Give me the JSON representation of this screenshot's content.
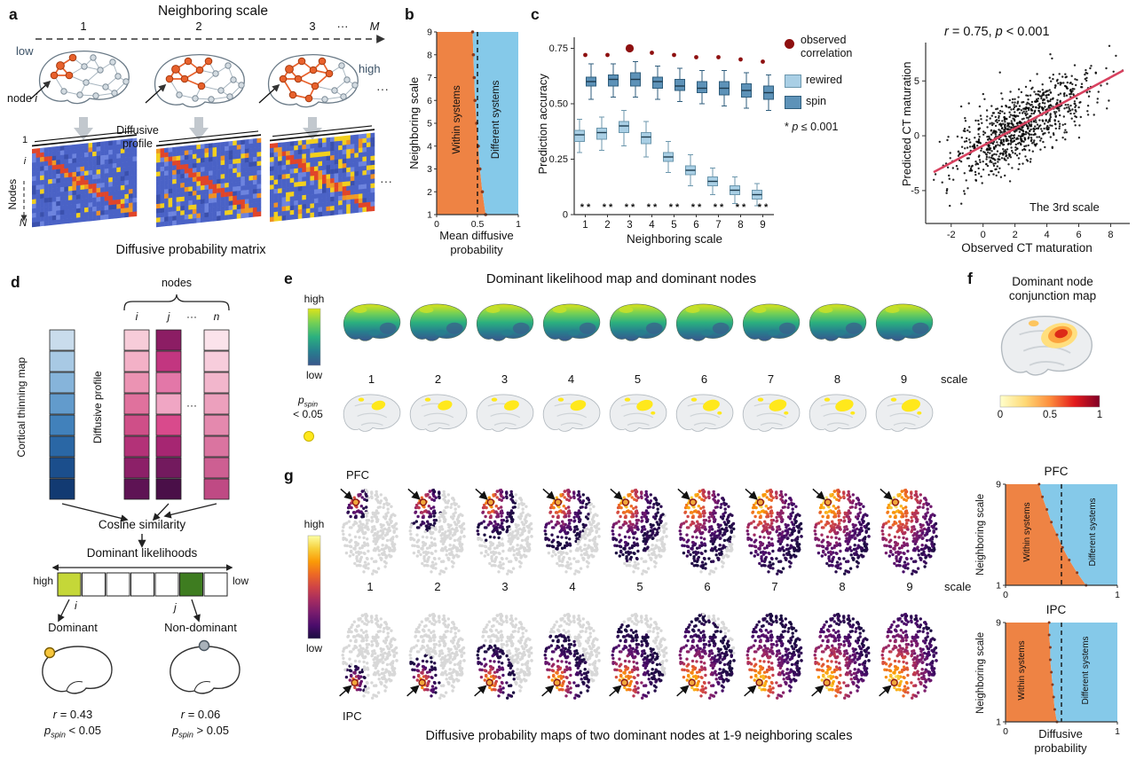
{
  "panels": {
    "a": {
      "label": "a",
      "title": "Neighboring scale",
      "scale_ticks": [
        "1",
        "2",
        "3",
        "···",
        "M"
      ],
      "low": "low",
      "high": "high",
      "node_i": {
        "pre": "node ",
        "it": "i"
      },
      "diffusive_profile": "Diffusive profile",
      "nodes_axis": "Nodes",
      "row_top": "1",
      "row_i": "i",
      "row_bottom": "N",
      "caption": "Diffusive probability matrix",
      "ellipsis_mid": "···",
      "ellipsis_right": "···"
    },
    "b": {
      "label": "b"
    },
    "c": {
      "label": "c"
    },
    "d": {
      "label": "d",
      "nodes_brace": "nodes",
      "col_i": "i",
      "col_j": "j",
      "col_dots": "···",
      "col_n": "n",
      "mid_dots": "···",
      "cortical_label": "Cortical thinning map",
      "diffusive_label": "Diffusive profile",
      "cosine": "Cosine similarity",
      "dominant_likelihoods": "Dominant likelihoods",
      "high": "high",
      "low": "low",
      "arrow_i": "i",
      "arrow_j": "j",
      "dominant": "Dominant",
      "non_dominant": "Non-dominant",
      "stat1_r": {
        "r": "r",
        "rest": " = 0.43"
      },
      "stat1_p": {
        "p": "p",
        "sub": "spin",
        "rest": " < 0.05"
      },
      "stat2_r": {
        "r": "r",
        "rest": " = 0.06"
      },
      "stat2_p": {
        "p": "p",
        "sub": "spin",
        "rest": " > 0.05"
      },
      "thinning_colors": [
        "#c9dcec",
        "#a8c9e4",
        "#86b4da",
        "#629bcc",
        "#4181bb",
        "#2a67a5",
        "#1b4e8c",
        "#123a72"
      ],
      "profile_i_colors": [
        "#f7ccd9",
        "#f3b1c7",
        "#eb93b3",
        "#e0719d",
        "#cf4f88",
        "#b33278",
        "#8c2068",
        "#5e1354"
      ],
      "profile_j_colors": [
        "#8c1d64",
        "#c23680",
        "#e377a8",
        "#f0a6c4",
        "#d94a8c",
        "#a62672",
        "#731a5e",
        "#4a0f48"
      ],
      "profile_n_colors": [
        "#fbe3eb",
        "#f7cddc",
        "#f2b6cc",
        "#eca0bd",
        "#e489ae",
        "#da74a0",
        "#cd5f92",
        "#bf4a84"
      ],
      "likelihood_cells": [
        "#c5d738",
        "#ffffff",
        "#ffffff",
        "#ffffff",
        "#ffffff",
        "#3e7c20",
        "#ffffff"
      ]
    },
    "e": {
      "label": "e",
      "title": "Dominant likelihood map and dominant nodes",
      "scales": [
        "1",
        "2",
        "3",
        "4",
        "5",
        "6",
        "7",
        "8",
        "9"
      ],
      "scale_word": "scale",
      "p_spin": {
        "p": "p",
        "sub": "spin",
        "rest": "< 0.05"
      }
    },
    "f": {
      "label": "f",
      "title": "Dominant node conjunction map"
    },
    "g": {
      "label": "g",
      "pfc": "PFC",
      "ipc": "IPC",
      "scales": [
        "1",
        "2",
        "3",
        "4",
        "5",
        "6",
        "7",
        "8",
        "9"
      ],
      "scale_word": "scale",
      "caption": "Diffusive probability maps of two dominant nodes at 1-9 neighboring scales"
    }
  },
  "colorbars": {
    "likelihood": {
      "high": "high",
      "low": "low",
      "stops": [
        "#dce319",
        "#74d055",
        "#2bb07f",
        "#277f8e",
        "#39568c"
      ]
    },
    "conjunction": {
      "ticks": [
        "0",
        "0.5",
        "1"
      ],
      "stops": [
        "#ffffcc",
        "#fed976",
        "#fd8d3c",
        "#e31a1c",
        "#800026"
      ]
    },
    "diffusive": {
      "high": "high",
      "low": "low",
      "stops": [
        "#fcffa4",
        "#f7d03c",
        "#fb9b06",
        "#ed6925",
        "#cf4446",
        "#a52c60",
        "#781c6d",
        "#4a0c6b",
        "#1b0c41"
      ]
    }
  },
  "chart_data": [
    {
      "id": "mean-diffusive-probability-by-scale",
      "type": "area",
      "title": "",
      "xlabel": "Mean diffusive probability",
      "ylabel": "Neighboring scale",
      "xlim": [
        0,
        1
      ],
      "xticks": [
        0,
        0.5,
        1
      ],
      "xtick_labels": [
        "0",
        "0.5",
        "1"
      ],
      "yticks": [
        1,
        2,
        3,
        4,
        5,
        6,
        7,
        8,
        9
      ],
      "dashed_x": 0.5,
      "regions": {
        "left": "Within systems",
        "right": "Different systems"
      },
      "region_colors": {
        "left": "#ee8344",
        "right": "#85c9e9"
      },
      "scales": [
        1,
        2,
        3,
        4,
        5,
        6,
        7,
        8,
        9
      ],
      "boundary": [
        0.6,
        0.56,
        0.53,
        0.51,
        0.49,
        0.47,
        0.46,
        0.45,
        0.44
      ]
    },
    {
      "id": "prediction-accuracy-boxplot",
      "type": "boxplot",
      "xlabel": "Neighboring scale",
      "ylabel": "Prediction accuracy",
      "categories": [
        "1",
        "2",
        "3",
        "4",
        "5",
        "6",
        "7",
        "8",
        "9"
      ],
      "ylim": [
        0,
        0.8
      ],
      "yticks": [
        0,
        0.25,
        0.5,
        0.75
      ],
      "ytick_labels": [
        "0",
        "0.25",
        "0.50",
        "0.75"
      ],
      "observed": [
        0.72,
        0.72,
        0.75,
        0.73,
        0.72,
        0.71,
        0.71,
        0.7,
        0.69
      ],
      "observed_emph_index": 2,
      "rewired": {
        "median": [
          0.36,
          0.37,
          0.4,
          0.35,
          0.26,
          0.2,
          0.15,
          0.11,
          0.09
        ],
        "q1": [
          0.33,
          0.34,
          0.37,
          0.32,
          0.24,
          0.18,
          0.13,
          0.09,
          0.07
        ],
        "q3": [
          0.38,
          0.39,
          0.42,
          0.37,
          0.28,
          0.22,
          0.17,
          0.13,
          0.11
        ],
        "lo": [
          0.28,
          0.29,
          0.31,
          0.26,
          0.19,
          0.13,
          0.09,
          0.05,
          0.04
        ],
        "hi": [
          0.43,
          0.44,
          0.47,
          0.42,
          0.33,
          0.27,
          0.21,
          0.17,
          0.14
        ]
      },
      "spin": {
        "median": [
          0.6,
          0.61,
          0.61,
          0.6,
          0.58,
          0.57,
          0.57,
          0.56,
          0.55
        ],
        "q1": [
          0.58,
          0.58,
          0.58,
          0.57,
          0.56,
          0.55,
          0.54,
          0.53,
          0.52
        ],
        "q3": [
          0.62,
          0.63,
          0.64,
          0.62,
          0.61,
          0.6,
          0.6,
          0.59,
          0.58
        ],
        "lo": [
          0.52,
          0.53,
          0.53,
          0.52,
          0.51,
          0.5,
          0.49,
          0.48,
          0.47
        ],
        "hi": [
          0.68,
          0.68,
          0.69,
          0.67,
          0.66,
          0.65,
          0.65,
          0.64,
          0.63
        ]
      },
      "sig_label": "* *",
      "colors": {
        "observed": "#8e1010",
        "rewired_fill": "#a9cfe5",
        "rewired_stroke": "#6c97ad",
        "spin_fill": "#5d92b8",
        "spin_stroke": "#2f5d7c"
      },
      "legend": {
        "observed": "observed correlation",
        "rewired": "rewired",
        "spin": "spin",
        "note_star": "*",
        "note_p": "p",
        "note_rest": " ≤ 0.001"
      }
    },
    {
      "id": "ct-maturation-scatter",
      "type": "scatter",
      "annotation": {
        "r": "r",
        "eq": " = 0.75, ",
        "p": "p",
        "rest": " < 0.001"
      },
      "xlabel": "Observed CT maturation",
      "ylabel": "Predicted CT maturation",
      "xlim": [
        -3.6,
        9.2
      ],
      "ylim": [
        -8,
        8.5
      ],
      "xticks": [
        -2,
        0,
        2,
        4,
        6,
        8
      ],
      "yticks": [
        -5,
        0,
        5
      ],
      "note": "The 3rd scale",
      "n_points": 900,
      "point_center": [
        2.3,
        0.9
      ],
      "point_sd_x": 2.25,
      "fit_b": 0.78,
      "fit_a": -0.9,
      "noise_sd": 1.62,
      "fit_line": {
        "x0": -3.1,
        "y0": -3.32,
        "x1": 8.8,
        "y1": 5.96
      },
      "point_color": "#000000",
      "line_color": "#d8415f"
    },
    {
      "id": "pfc-diffusive-probability",
      "type": "area",
      "title": "PFC",
      "xlabel": "Diffusive probability",
      "ylabel": "Neighboring scale",
      "xlim": [
        0,
        1
      ],
      "xticks": [
        0,
        1
      ],
      "xtick_labels": [
        "0",
        "1"
      ],
      "yticks": [
        1,
        2,
        3,
        4,
        5,
        6,
        7,
        8,
        9
      ],
      "dashed_x": 0.5,
      "regions": {
        "left": "Within systems",
        "right": "Different systems"
      },
      "region_colors": {
        "left": "#ee8344",
        "right": "#85c9e9"
      },
      "scales": [
        1,
        2,
        3,
        4,
        5,
        6,
        7,
        8,
        9
      ],
      "boundary": [
        0.72,
        0.64,
        0.57,
        0.51,
        0.46,
        0.41,
        0.37,
        0.33,
        0.3
      ]
    },
    {
      "id": "ipc-diffusive-probability",
      "type": "area",
      "title": "IPC",
      "xlabel": "Diffusive probability",
      "ylabel": "Neighboring scale",
      "xlim": [
        0,
        1
      ],
      "xticks": [
        0,
        1
      ],
      "xtick_labels": [
        "0",
        "1"
      ],
      "yticks": [
        1,
        2,
        3,
        4,
        5,
        6,
        7,
        8,
        9
      ],
      "dashed_x": 0.5,
      "regions": {
        "left": "Within systems",
        "right": "Different systems"
      },
      "region_colors": {
        "left": "#ee8344",
        "right": "#85c9e9"
      },
      "scales": [
        1,
        2,
        3,
        4,
        5,
        6,
        7,
        8,
        9
      ],
      "boundary": [
        0.46,
        0.44,
        0.43,
        0.42,
        0.41,
        0.4,
        0.4,
        0.39,
        0.39
      ]
    }
  ]
}
